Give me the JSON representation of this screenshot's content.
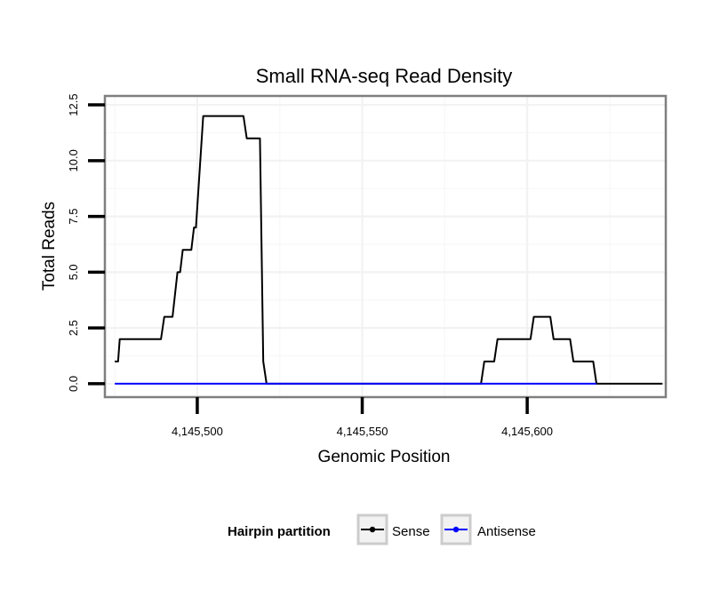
{
  "chart_data": {
    "type": "line",
    "title": "Small RNA-seq Read Density",
    "xlabel": "Genomic Position",
    "ylabel": "Total Reads",
    "xlim": [
      4145472,
      4145642
    ],
    "ylim": [
      -0.6,
      12.9
    ],
    "x_ticks": [
      4145500,
      4145550,
      4145600
    ],
    "x_tick_labels": [
      "4,145,500",
      "4,145,550",
      "4,145,600"
    ],
    "y_ticks": [
      0,
      2.5,
      5,
      7.5,
      10,
      12.5
    ],
    "y_tick_labels": [
      "0.0",
      "2.5",
      "5.0",
      "7.5",
      "10.0",
      "12.5"
    ],
    "legend": {
      "title": "Hairpin partition",
      "position": "bottom"
    },
    "series": [
      {
        "name": "Sense",
        "color": "#000000",
        "points": [
          [
            4145475,
            1
          ],
          [
            4145476,
            1
          ],
          [
            4145476.5,
            2
          ],
          [
            4145489,
            2
          ],
          [
            4145490,
            3
          ],
          [
            4145492.5,
            3
          ],
          [
            4145494,
            5
          ],
          [
            4145494.8,
            5
          ],
          [
            4145495.6,
            6
          ],
          [
            4145498.2,
            6
          ],
          [
            4145499,
            7
          ],
          [
            4145499.6,
            7
          ],
          [
            4145501.8,
            12
          ],
          [
            4145514,
            12
          ],
          [
            4145515,
            11
          ],
          [
            4145519,
            11
          ],
          [
            4145520,
            1
          ],
          [
            4145521,
            0
          ],
          [
            4145586,
            0
          ],
          [
            4145587,
            1
          ],
          [
            4145590,
            1
          ],
          [
            4145591,
            2
          ],
          [
            4145601,
            2
          ],
          [
            4145602,
            3
          ],
          [
            4145607,
            3
          ],
          [
            4145608,
            2
          ],
          [
            4145613,
            2
          ],
          [
            4145614,
            1
          ],
          [
            4145620,
            1
          ],
          [
            4145621,
            0
          ],
          [
            4145641,
            0
          ]
        ]
      },
      {
        "name": "Antisense",
        "color": "#0000ff",
        "points": [
          [
            4145475,
            0
          ],
          [
            4145621,
            0
          ]
        ]
      }
    ]
  }
}
